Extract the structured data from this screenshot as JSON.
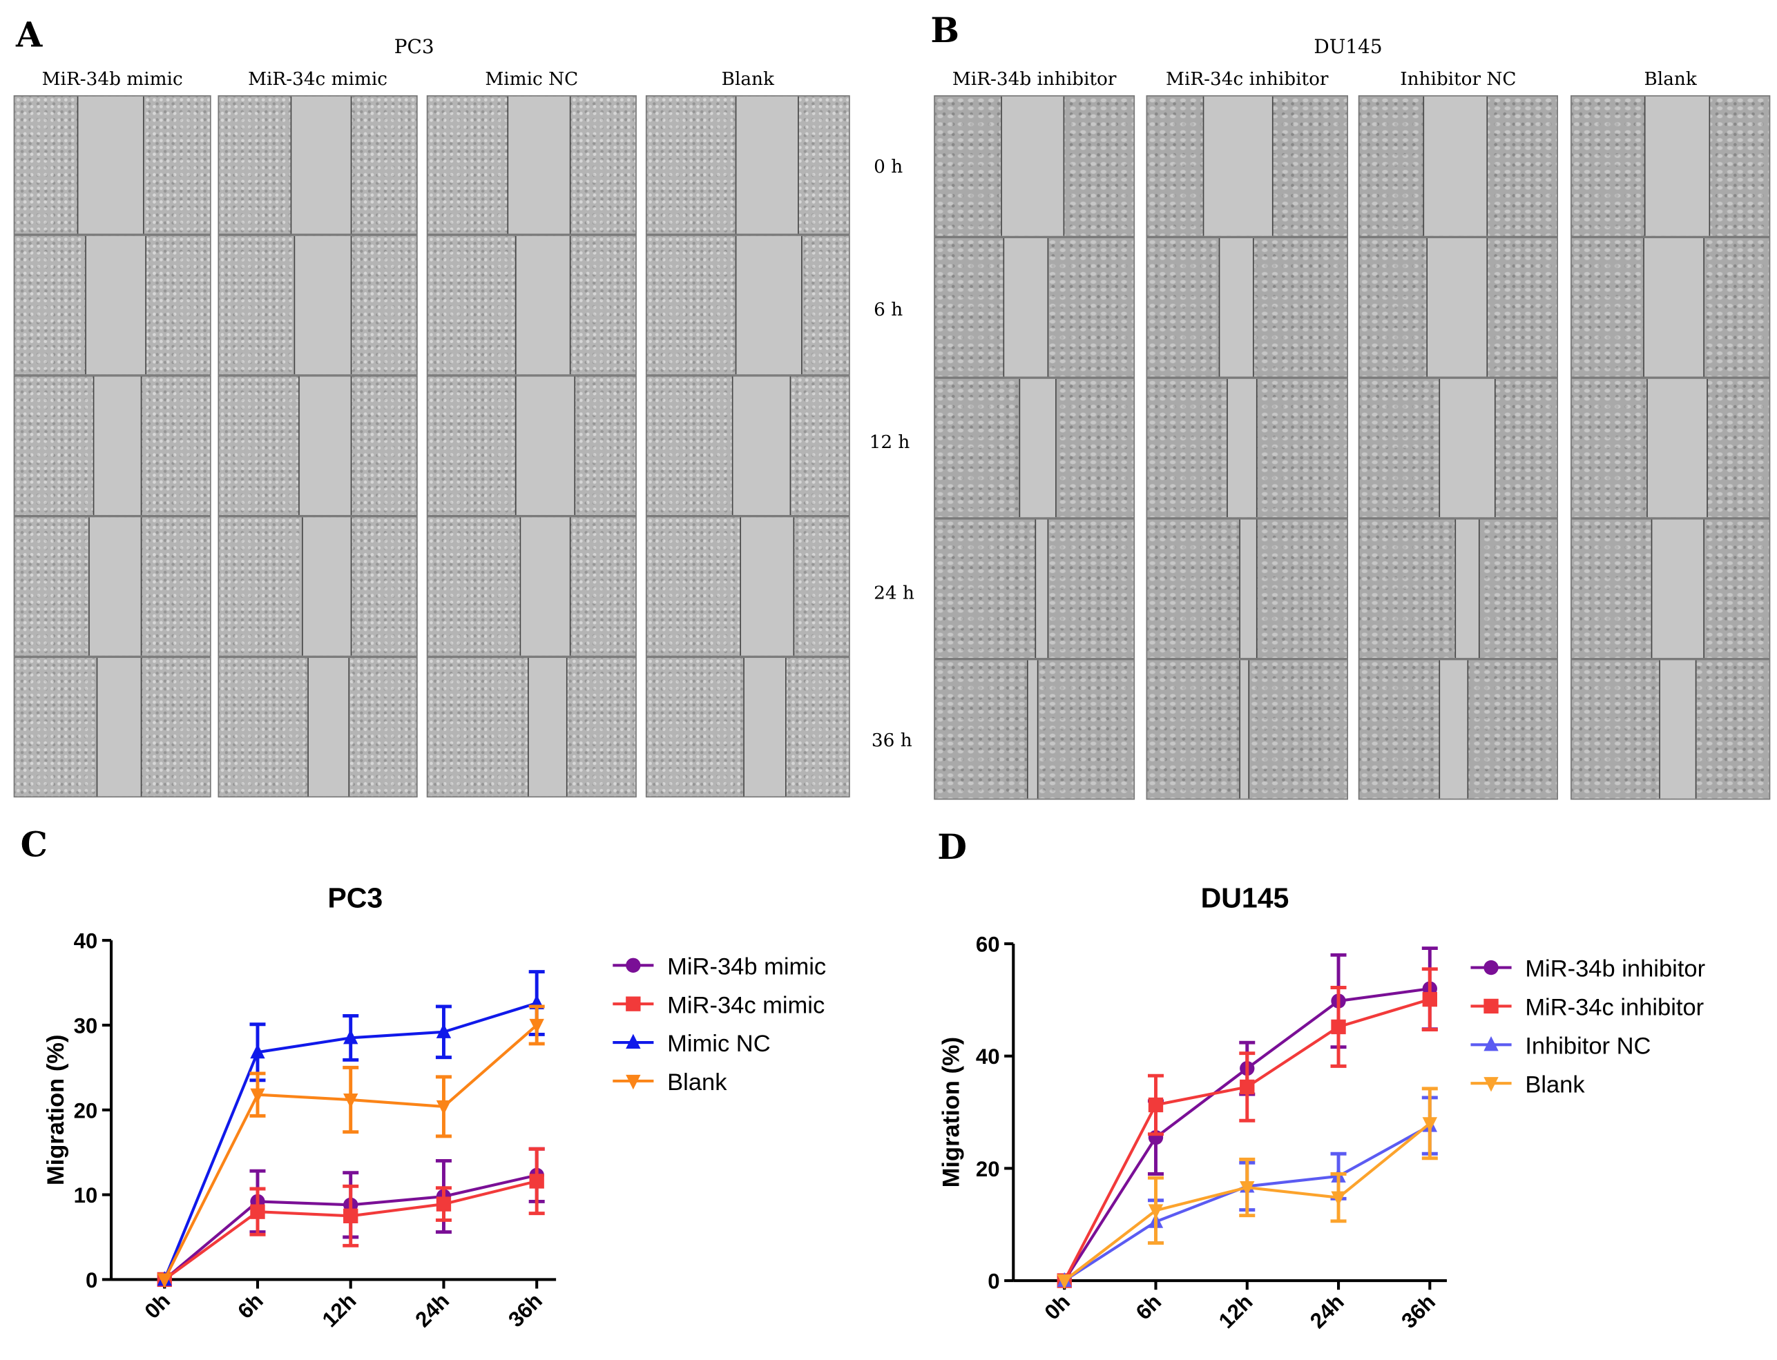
{
  "panels": {
    "A": {
      "letter": "A",
      "title": "PC3",
      "columns": [
        "MiR-34b mimic",
        "MiR-34c mimic",
        "Mimic NC",
        "Blank"
      ],
      "timepoints": [
        "0 h",
        "6 h",
        "12 h",
        "24 h",
        "36 h"
      ]
    },
    "B": {
      "letter": "B",
      "title": "DU145",
      "columns": [
        "MiR-34b inhibitor",
        "MiR-34c inhibitor",
        "Inhibitor NC",
        "Blank"
      ]
    },
    "C": {
      "letter": "C"
    },
    "D": {
      "letter": "D"
    }
  },
  "chart_data": [
    {
      "type": "line",
      "title": "PC3",
      "xlabel": "",
      "ylabel": "Migration (%)",
      "categories": [
        "0h",
        "6h",
        "12h",
        "24h",
        "36h"
      ],
      "ylim": [
        0,
        40
      ],
      "yticks": [
        0,
        10,
        20,
        30,
        40
      ],
      "legend": "right",
      "series": [
        {
          "name": "MiR-34b mimic",
          "color": "#7a0f96",
          "marker": "circle",
          "values": [
            0,
            9.2,
            8.8,
            9.8,
            12.3
          ],
          "error": [
            0,
            3.6,
            3.8,
            4.2,
            3.1
          ]
        },
        {
          "name": "MiR-34c mimic",
          "color": "#f23a3a",
          "marker": "square",
          "values": [
            0,
            8.0,
            7.5,
            8.9,
            11.6
          ],
          "error": [
            0,
            2.7,
            3.5,
            1.9,
            3.8
          ]
        },
        {
          "name": "Mimic NC",
          "color": "#1019ea",
          "marker": "triangle-up",
          "values": [
            0,
            26.8,
            28.5,
            29.2,
            32.6
          ],
          "error": [
            0,
            3.3,
            2.6,
            3.0,
            3.7
          ]
        },
        {
          "name": "Blank",
          "color": "#fb8417",
          "marker": "triangle-down",
          "values": [
            0,
            21.8,
            21.2,
            20.4,
            30.0
          ],
          "error": [
            0,
            2.5,
            3.8,
            3.5,
            2.2
          ]
        }
      ]
    },
    {
      "type": "line",
      "title": "DU145",
      "xlabel": "",
      "ylabel": "Migration (%)",
      "categories": [
        "0h",
        "6h",
        "12h",
        "24h",
        "36h"
      ],
      "ylim": [
        0,
        60
      ],
      "yticks": [
        0,
        20,
        40,
        60
      ],
      "legend": "right",
      "series": [
        {
          "name": "MiR-34b inhibitor",
          "color": "#7a0f96",
          "marker": "circle",
          "values": [
            0,
            25.5,
            37.8,
            49.8,
            52.0
          ],
          "error": [
            0,
            6.5,
            4.6,
            8.2,
            7.2
          ]
        },
        {
          "name": "MiR-34c  inhibitor",
          "color": "#f23a3a",
          "marker": "square",
          "values": [
            0,
            31.3,
            34.5,
            45.2,
            50.1
          ],
          "error": [
            0,
            5.2,
            6.0,
            7.0,
            5.4
          ]
        },
        {
          "name": " Inhibitor NC",
          "color": "#5b5bf2",
          "marker": "triangle-up",
          "values": [
            0,
            10.5,
            16.8,
            18.6,
            27.6
          ],
          "error": [
            0,
            3.8,
            4.2,
            4.0,
            5.0
          ]
        },
        {
          "name": "Blank",
          "color": "#fca32c",
          "marker": "triangle-down",
          "values": [
            0,
            12.5,
            16.6,
            14.8,
            28.0
          ],
          "error": [
            0,
            5.8,
            5.0,
            4.2,
            6.2
          ]
        }
      ]
    }
  ]
}
